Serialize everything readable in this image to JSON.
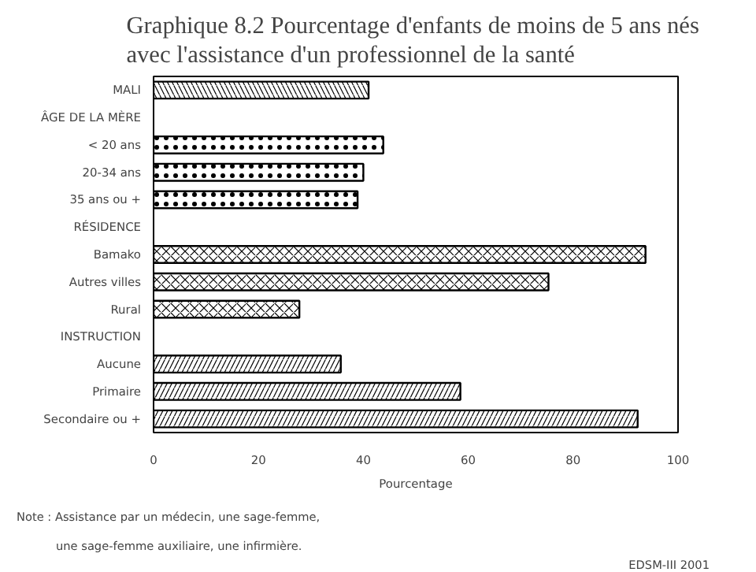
{
  "chart_data": {
    "type": "bar",
    "orientation": "horizontal",
    "title": "Graphique 8.2  Pourcentage d'enfants de moins de 5 ans nés\navec l'assistance d'un professionnel de la santé",
    "categories": [
      "MALI",
      "ÂGE DE LA MÈRE",
      "< 20 ans",
      "20-34 ans",
      "35 ans ou +",
      "RÉSIDENCE",
      "Bamako",
      "Autres villes",
      "Rural",
      "INSTRUCTION",
      "Aucune",
      "Primaire",
      "Secondaire ou +"
    ],
    "values": [
      41.0,
      null,
      43.8,
      40.0,
      38.9,
      null,
      93.8,
      75.3,
      27.8,
      null,
      35.7,
      58.5,
      92.3
    ],
    "color": "#ffffff",
    "xlim": [
      0,
      100
    ],
    "xticks": [
      0,
      20,
      40,
      60,
      80,
      100
    ],
    "xlabel": "Pourcentage",
    "grid": false,
    "annotations": [
      "Note : Assistance par un médecin, une sage-femme,\nune sage-femme auxiliaire, une infirmière.",
      "EDSM-III 2001"
    ]
  }
}
